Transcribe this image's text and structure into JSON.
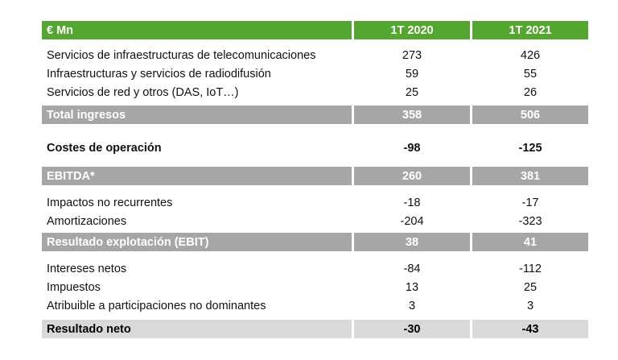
{
  "colors": {
    "header": "#55a630",
    "subtotal": "#a6a6a6",
    "final": "#d9d9d9"
  },
  "header": {
    "label": "€ Mn",
    "col1": "1T 2020",
    "col2": "1T 2021"
  },
  "rows": [
    {
      "label": "Servicios de infraestructuras de telecomunicaciones",
      "v1": "273",
      "v2": "426"
    },
    {
      "label": "Infraestructuras y servicios de radiodifusión",
      "v1": "59",
      "v2": "55"
    },
    {
      "label": "Servicios de red y otros (DAS, IoT…)",
      "v1": "25",
      "v2": "26"
    },
    {
      "label": "Total ingresos",
      "v1": "358",
      "v2": "506"
    },
    {
      "label": "Costes de operación",
      "v1": "-98",
      "v2": "-125"
    },
    {
      "label": "EBITDA*",
      "v1": "260",
      "v2": "381"
    },
    {
      "label": "Impactos no recurrentes",
      "v1": "-18",
      "v2": "-17"
    },
    {
      "label": "Amortizaciones",
      "v1": "-204",
      "v2": "-323"
    },
    {
      "label": "Resultado explotación (EBIT)",
      "v1": "38",
      "v2": "41"
    },
    {
      "label": "Intereses netos",
      "v1": "-84",
      "v2": "-112"
    },
    {
      "label": "Impuestos",
      "v1": "13",
      "v2": "25"
    },
    {
      "label": "Atribuible a participaciones no dominantes",
      "v1": "3",
      "v2": "3"
    },
    {
      "label": "Resultado neto",
      "v1": "-30",
      "v2": "-43"
    }
  ]
}
